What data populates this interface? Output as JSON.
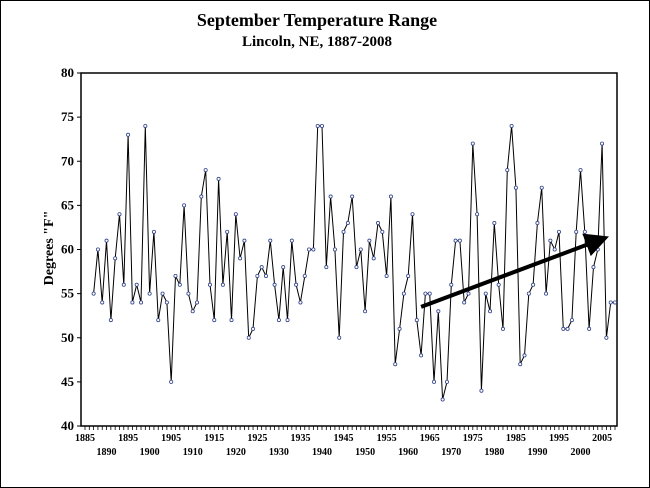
{
  "chart_data": {
    "type": "line",
    "title": "September Temperature Range",
    "subtitle": "Lincoln, NE, 1887-2008",
    "ylabel": "Degrees \"F\"",
    "xlabel": "",
    "ylim": [
      40,
      80
    ],
    "xlim": [
      1885,
      2008
    ],
    "yticks": [
      40,
      45,
      50,
      55,
      60,
      65,
      70,
      75,
      80
    ],
    "xticks_top": [
      1885,
      1895,
      1905,
      1915,
      1925,
      1935,
      1945,
      1955,
      1965,
      1975,
      1985,
      1995,
      2005
    ],
    "xticks_bottom": [
      1890,
      1900,
      1910,
      1920,
      1930,
      1940,
      1950,
      1960,
      1970,
      1980,
      1990,
      2000
    ],
    "grid": false,
    "series": [
      {
        "x": [
          1887,
          1888,
          1889,
          1890,
          1891,
          1892,
          1893,
          1894,
          1895,
          1896,
          1897,
          1898,
          1899,
          1900,
          1901,
          1902,
          1903,
          1904,
          1905,
          1906,
          1907,
          1908,
          1909,
          1910,
          1911,
          1912,
          1913,
          1914,
          1915,
          1916,
          1917,
          1918,
          1919,
          1920,
          1921,
          1922,
          1923,
          1924,
          1925,
          1926,
          1927,
          1928,
          1929,
          1930,
          1931,
          1932,
          1933,
          1934,
          1935,
          1936,
          1937,
          1938,
          1939,
          1940,
          1941,
          1942,
          1943,
          1944,
          1945,
          1946,
          1947,
          1948,
          1949,
          1950,
          1951,
          1952,
          1953,
          1954,
          1955,
          1956,
          1957,
          1958,
          1959,
          1960,
          1961,
          1962,
          1963,
          1964,
          1965,
          1966,
          1967,
          1968,
          1969,
          1970,
          1971,
          1972,
          1973,
          1974,
          1975,
          1976,
          1977,
          1978,
          1979,
          1980,
          1981,
          1982,
          1983,
          1984,
          1985,
          1986,
          1987,
          1988,
          1989,
          1990,
          1991,
          1992,
          1993,
          1994,
          1995,
          1996,
          1997,
          1998,
          1999,
          2000,
          2001,
          2002,
          2003,
          2004,
          2005,
          2006,
          2007,
          2008
        ],
        "values": [
          55,
          60,
          54,
          61,
          52,
          59,
          64,
          56,
          73,
          54,
          56,
          54,
          74,
          55,
          62,
          52,
          55,
          54,
          45,
          57,
          56,
          65,
          55,
          53,
          54,
          66,
          69,
          56,
          52,
          68,
          56,
          62,
          52,
          64,
          59,
          61,
          50,
          51,
          57,
          58,
          57,
          61,
          56,
          52,
          58,
          52,
          61,
          56,
          54,
          57,
          60,
          60,
          74,
          74,
          58,
          66,
          60,
          50,
          62,
          63,
          66,
          58,
          60,
          53,
          61,
          59,
          63,
          62,
          57,
          66,
          47,
          51,
          55,
          57,
          64,
          52,
          48,
          55,
          55,
          45,
          53,
          43,
          45,
          56,
          61,
          61,
          54,
          55,
          72,
          64,
          44,
          55,
          53,
          63,
          56,
          51,
          69,
          74,
          67,
          47,
          48,
          55,
          56,
          63,
          67,
          55,
          61,
          60,
          62,
          51,
          51,
          52,
          62,
          69,
          62,
          51,
          58,
          60,
          72,
          50,
          54,
          54
        ]
      }
    ],
    "annotations": [
      {
        "type": "arrow",
        "from": [
          1963,
          53.5
        ],
        "to": [
          2004,
          61
        ]
      }
    ]
  }
}
